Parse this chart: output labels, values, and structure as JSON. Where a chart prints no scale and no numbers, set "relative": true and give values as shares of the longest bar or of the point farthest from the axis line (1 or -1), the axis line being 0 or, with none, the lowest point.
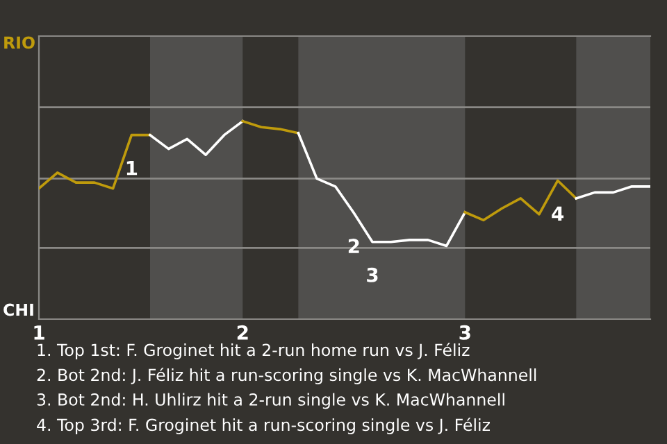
{
  "chart_data": {
    "type": "line",
    "relative": true,
    "categories": [
      "1",
      null,
      null,
      null,
      null,
      null,
      null,
      null,
      null,
      null,
      null,
      "2",
      null,
      null,
      null,
      null,
      null,
      null,
      null,
      null,
      null,
      null,
      null,
      "3",
      null,
      null,
      null,
      null,
      null,
      null,
      null,
      null,
      null,
      null
    ],
    "series": [
      {
        "color": "#bf9b0c",
        "values": [
          0.66,
          0.74,
          0.69,
          0.69,
          0.66,
          0.93,
          0.93,
          null,
          null,
          null,
          null,
          null,
          null,
          null,
          null,
          null,
          null,
          null,
          null,
          null,
          null,
          null,
          null,
          null,
          null,
          null,
          null,
          null,
          null,
          null,
          null,
          null,
          null,
          null
        ]
      },
      {
        "color": "#ffffff",
        "values": [
          null,
          null,
          null,
          null,
          null,
          null,
          0.93,
          0.86,
          0.91,
          0.83,
          0.93,
          1,
          null,
          null,
          null,
          null,
          null,
          null,
          null,
          null,
          null,
          null,
          null,
          null,
          null,
          null,
          null,
          null,
          null,
          null,
          null,
          null,
          null,
          null
        ]
      },
      {
        "color": "#bf9b0c",
        "values": [
          null,
          null,
          null,
          null,
          null,
          null,
          null,
          null,
          null,
          null,
          null,
          1,
          0.97,
          0.96,
          0.94,
          null,
          null,
          null,
          null,
          null,
          null,
          null,
          null,
          null,
          null,
          null,
          null,
          null,
          null,
          null,
          null,
          null,
          null,
          null
        ]
      },
      {
        "color": "#ffffff",
        "values": [
          null,
          null,
          null,
          null,
          null,
          null,
          null,
          null,
          null,
          null,
          null,
          null,
          null,
          null,
          0.94,
          0.71,
          0.67,
          0.536,
          0.39,
          0.39,
          0.4,
          0.4,
          0.37,
          0.54,
          null,
          null,
          null,
          null,
          null,
          null,
          null,
          null,
          null,
          null
        ]
      },
      {
        "color": "#bf9b0c",
        "values": [
          null,
          null,
          null,
          null,
          null,
          null,
          null,
          null,
          null,
          null,
          null,
          null,
          null,
          null,
          null,
          null,
          null,
          null,
          null,
          null,
          null,
          null,
          null,
          0.54,
          0.5,
          0.56,
          0.61,
          0.53,
          0.7,
          0.61,
          null,
          null,
          null,
          null
        ]
      },
      {
        "color": "#ffffff",
        "values": [
          null,
          null,
          null,
          null,
          null,
          null,
          null,
          null,
          null,
          null,
          null,
          null,
          null,
          null,
          null,
          null,
          null,
          null,
          null,
          null,
          null,
          null,
          null,
          null,
          null,
          null,
          null,
          null,
          null,
          0.61,
          0.64,
          0.64,
          0.67,
          0.67
        ]
      }
    ],
    "ref_lines": [
      {
        "axis": "y",
        "value": 0.36,
        "color": "#8a8986"
      },
      {
        "axis": "y",
        "value": 0.71,
        "color": "#8a8986"
      },
      {
        "axis": "y",
        "value": 1.07,
        "color": "#8a8986"
      }
    ],
    "annotations": [
      "RIO",
      "CHI",
      {
        "text": "1",
        "y": 0.93
      },
      {
        "text": "2",
        "y": 0.536
      },
      {
        "text": "3",
        "y": 0.39
      },
      {
        "text": "4",
        "y": 0.7
      },
      "1. Top 1st: F. Groginet hit a 2-run home run vs J. Féliz",
      "2. Bot 2nd: J. Féliz hit a run-scoring single vs K. MacWhannell",
      "3. Bot 2nd: H. Uhlirz hit a 2-run single vs K. MacWhannell",
      "4. Top 3rd: F. Groginet hit a run-scoring single vs J. Féliz"
    ]
  }
}
